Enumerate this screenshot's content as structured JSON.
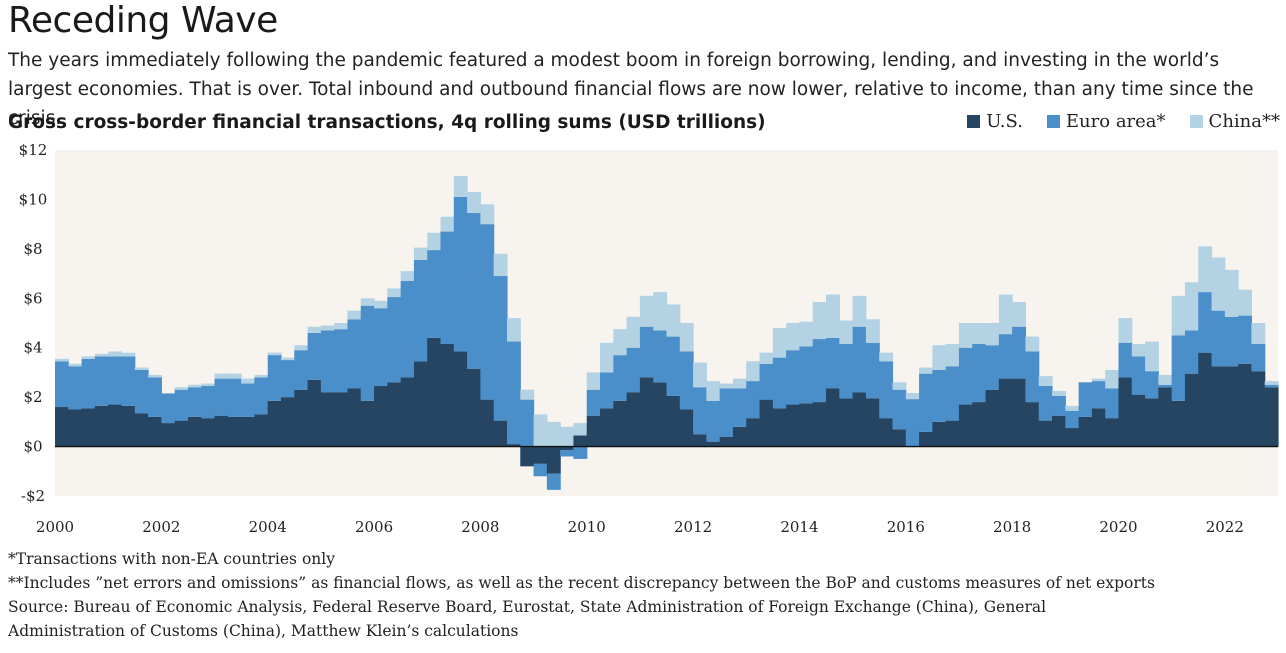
{
  "title": "Receding Wave",
  "subtitle": "The years immediately following the pandemic featured a modest boom in foreign borrowing, lending, and investing in the world’s largest economies. That is over. Total inbound and outbound financial flows are now lower, relative to income, than any time since the crisis.",
  "notes": {
    "note1": "*Transactions with non-EA countries only",
    "note2": "**Includes ”net errors and omissions” as financial flows, as well as the recent discrepancy between the BoP and customs measures of net exports",
    "source1": "Source: Bureau of Economic Analysis, Federal Reserve Board, Eurostat, State Administration of Foreign Exchange (China), General",
    "source2": "Administration of Customs (China),  Matthew Klein’s calculations"
  },
  "colors": {
    "us": "#254563",
    "euro": "#4a8fc9",
    "china": "#b3d2e3",
    "plot_bg": "#f7f4ef"
  },
  "chart_data": {
    "type": "area",
    "title": "Gross cross-border financial transactions, 4q rolling sums (USD trillions)",
    "stacked": true,
    "step": true,
    "xlabel": "",
    "ylabel": "",
    "xlim": [
      2000.0,
      2023.0
    ],
    "ylim": [
      -2,
      12
    ],
    "yticks": [
      -2,
      0,
      2,
      4,
      6,
      8,
      10,
      12
    ],
    "ytick_labels": [
      "-$2",
      "$0",
      "$2",
      "$4",
      "$6",
      "$8",
      "$10",
      "$12"
    ],
    "xticks": [
      2000,
      2002,
      2004,
      2006,
      2008,
      2010,
      2012,
      2014,
      2016,
      2018,
      2020,
      2022
    ],
    "xtick_labels": [
      "2000",
      "2002",
      "2004",
      "2006",
      "2008",
      "2010",
      "2012",
      "2014",
      "2016",
      "2018",
      "2020",
      "2022"
    ],
    "legend_position": "top-right",
    "grid": false,
    "x": [
      2000.0,
      2000.25,
      2000.5,
      2000.75,
      2001.0,
      2001.25,
      2001.5,
      2001.75,
      2002.0,
      2002.25,
      2002.5,
      2002.75,
      2003.0,
      2003.25,
      2003.5,
      2003.75,
      2004.0,
      2004.25,
      2004.5,
      2004.75,
      2005.0,
      2005.25,
      2005.5,
      2005.75,
      2006.0,
      2006.25,
      2006.5,
      2006.75,
      2007.0,
      2007.25,
      2007.5,
      2007.75,
      2008.0,
      2008.25,
      2008.5,
      2008.75,
      2009.0,
      2009.25,
      2009.5,
      2009.75,
      2010.0,
      2010.25,
      2010.5,
      2010.75,
      2011.0,
      2011.25,
      2011.5,
      2011.75,
      2012.0,
      2012.25,
      2012.5,
      2012.75,
      2013.0,
      2013.25,
      2013.5,
      2013.75,
      2014.0,
      2014.25,
      2014.5,
      2014.75,
      2015.0,
      2015.25,
      2015.5,
      2015.75,
      2016.0,
      2016.25,
      2016.5,
      2016.75,
      2017.0,
      2017.25,
      2017.5,
      2017.75,
      2018.0,
      2018.25,
      2018.5,
      2018.75,
      2019.0,
      2019.25,
      2019.5,
      2019.75,
      2020.0,
      2020.25,
      2020.5,
      2020.75,
      2021.0,
      2021.25,
      2021.5,
      2021.75,
      2022.0,
      2022.25,
      2022.5,
      2022.75
    ],
    "series": [
      {
        "name": "U.S.",
        "values": [
          1.6,
          1.5,
          1.55,
          1.65,
          1.7,
          1.65,
          1.35,
          1.2,
          0.95,
          1.05,
          1.2,
          1.15,
          1.25,
          1.2,
          1.2,
          1.3,
          1.85,
          2.0,
          2.3,
          2.7,
          2.2,
          2.2,
          2.35,
          1.85,
          2.45,
          2.6,
          2.8,
          3.45,
          4.4,
          4.15,
          3.85,
          3.15,
          1.9,
          1.05,
          0.1,
          -0.8,
          -0.7,
          -1.1,
          -0.15,
          0.45,
          1.25,
          1.55,
          1.85,
          2.2,
          2.8,
          2.6,
          2.05,
          1.5,
          0.5,
          0.2,
          0.4,
          0.8,
          1.15,
          1.9,
          1.55,
          1.7,
          1.75,
          1.8,
          2.35,
          1.95,
          2.2,
          1.95,
          1.15,
          0.7,
          0.02,
          0.6,
          1.0,
          1.05,
          1.7,
          1.8,
          2.3,
          2.75,
          2.75,
          1.8,
          1.05,
          1.25,
          0.75,
          1.2,
          1.55,
          1.15,
          2.8,
          2.1,
          1.95,
          2.4,
          1.85,
          2.95,
          3.8,
          3.25,
          3.25,
          3.35,
          3.05,
          2.4
        ]
      },
      {
        "name": "Euro area*",
        "values": [
          1.85,
          1.75,
          2.0,
          2.0,
          1.95,
          2.0,
          1.75,
          1.6,
          1.2,
          1.25,
          1.2,
          1.3,
          1.5,
          1.55,
          1.35,
          1.5,
          1.85,
          1.5,
          1.6,
          1.9,
          2.5,
          2.55,
          2.8,
          3.85,
          3.15,
          3.45,
          3.9,
          4.1,
          3.55,
          4.55,
          6.25,
          6.3,
          7.1,
          5.85,
          4.15,
          1.9,
          -0.5,
          -0.65,
          -0.25,
          -0.5,
          1.05,
          1.45,
          1.85,
          1.8,
          2.05,
          2.1,
          2.4,
          2.35,
          1.9,
          1.65,
          1.95,
          1.55,
          1.5,
          1.45,
          2.05,
          2.2,
          2.3,
          2.55,
          2.05,
          2.2,
          2.65,
          2.25,
          2.3,
          1.6,
          1.9,
          2.35,
          2.1,
          2.2,
          2.3,
          2.35,
          1.8,
          1.8,
          2.1,
          2.05,
          1.4,
          0.8,
          0.7,
          1.4,
          1.1,
          1.2,
          1.4,
          1.55,
          1.1,
          0.1,
          2.65,
          1.75,
          2.45,
          2.25,
          2.0,
          1.95,
          1.1,
          0.1
        ]
      },
      {
        "name": "China**",
        "values": [
          0.1,
          0.1,
          0.1,
          0.1,
          0.2,
          0.15,
          0.1,
          0.1,
          0.0,
          0.1,
          0.1,
          0.1,
          0.2,
          0.2,
          0.2,
          0.1,
          0.1,
          0.1,
          0.2,
          0.25,
          0.2,
          0.25,
          0.35,
          0.3,
          0.3,
          0.35,
          0.4,
          0.5,
          0.7,
          0.6,
          0.85,
          0.85,
          0.8,
          0.9,
          0.95,
          0.4,
          1.3,
          1.0,
          0.8,
          0.5,
          0.7,
          1.2,
          1.05,
          1.25,
          1.25,
          1.55,
          1.3,
          1.15,
          1.0,
          0.8,
          0.2,
          0.4,
          0.8,
          0.45,
          1.2,
          1.1,
          1.0,
          1.5,
          1.75,
          0.95,
          1.25,
          0.95,
          0.35,
          0.3,
          0.25,
          0.25,
          1.0,
          0.9,
          1.0,
          0.85,
          0.9,
          1.6,
          1.0,
          0.6,
          0.4,
          0.2,
          0.2,
          0.0,
          0.1,
          0.75,
          1.0,
          0.5,
          1.2,
          0.4,
          1.6,
          1.95,
          1.85,
          2.15,
          1.9,
          1.05,
          0.85,
          0.15
        ]
      }
    ]
  }
}
